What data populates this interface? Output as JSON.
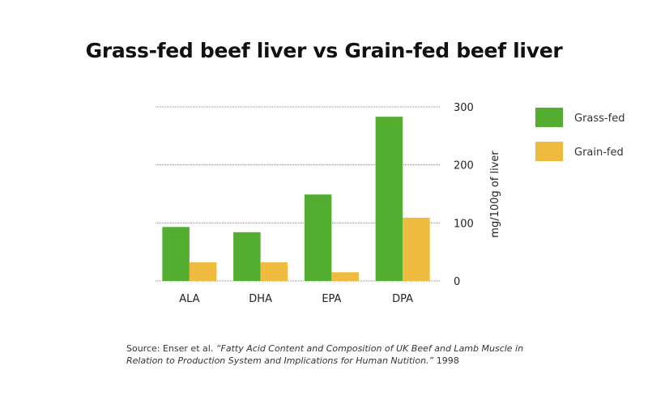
{
  "chart_data": {
    "type": "bar",
    "title": "Grass-fed beef liver vs Grain-fed beef liver",
    "categories": [
      "ALA",
      "DHA",
      "EPA",
      "DPA"
    ],
    "series": [
      {
        "name": "Grass-fed",
        "values": [
          93,
          84,
          149,
          283
        ],
        "color": "#52ad31"
      },
      {
        "name": "Grain-fed",
        "values": [
          32,
          32,
          15,
          109
        ],
        "color": "#efbb3e"
      }
    ],
    "xlabel": "",
    "ylabel": "mg/100g of liver",
    "ylim": [
      0,
      300
    ],
    "yticks": [
      0,
      100,
      200,
      300
    ],
    "y_axis_side": "right",
    "grid": true,
    "legend": "right"
  },
  "source": {
    "prefix": "Source: Enser et al. ",
    "title": "“Fatty Acid Content and Composition of UK Beef and Lamb Muscle in Relation to Production System and Implications for Human Nutition.”",
    "year": " 1998"
  }
}
